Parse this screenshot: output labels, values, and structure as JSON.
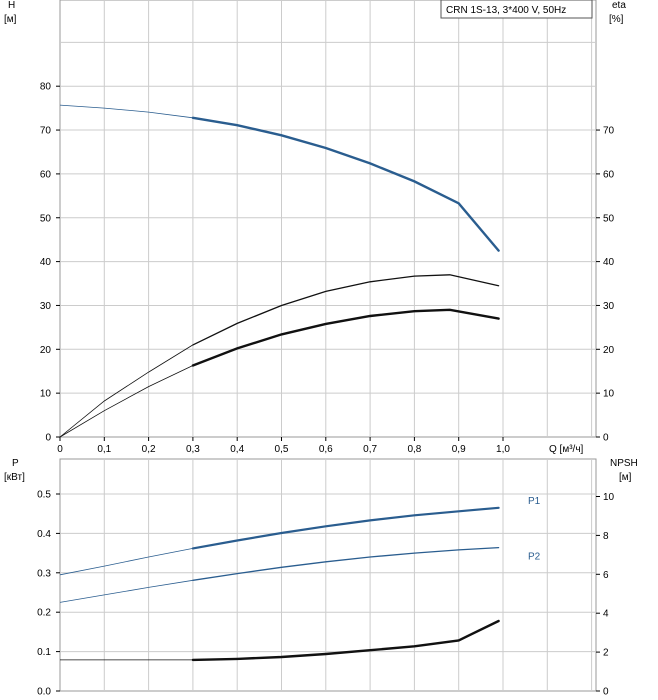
{
  "chart_data": [
    {
      "type": "line",
      "legend": "CRN 1S-13, 3*400 V, 50Hz",
      "left_axis_label": [
        "H",
        "[м]"
      ],
      "right_axis_label": [
        "eta",
        "[%]"
      ],
      "x_axis_label": "Q [м³/ч]",
      "x_ticks": [
        "0",
        "0,1",
        "0,2",
        "0,3",
        "0,4",
        "0,5",
        "0,6",
        "0,7",
        "0,8",
        "0,9",
        "1,0"
      ],
      "left_ticks": [
        "0",
        "10",
        "20",
        "30",
        "40",
        "50",
        "60",
        "70",
        "80"
      ],
      "right_ticks": [
        "0",
        "10",
        "20",
        "30",
        "40",
        "50",
        "60",
        "70"
      ],
      "xlim": [
        0,
        1.23
      ],
      "ylim": [
        0,
        100
      ],
      "colors": {
        "head": "#2a5d8f",
        "eta": "#111111",
        "grid": "#cccccc"
      },
      "series": [
        {
          "axis": "H",
          "x": [
            0,
            0.1,
            0.2,
            0.3,
            0.4,
            0.5,
            0.6,
            0.7,
            0.8,
            0.9,
            0.99
          ],
          "y": [
            75.7,
            75.0,
            74.1,
            72.8,
            71.1,
            68.8,
            65.9,
            62.4,
            58.3,
            53.3,
            42.5
          ]
        },
        {
          "axis": "eta",
          "x": [
            0,
            0.1,
            0.2,
            0.3,
            0.4,
            0.5,
            0.6,
            0.7,
            0.8,
            0.88,
            0.99
          ],
          "y": [
            0,
            8.2,
            14.8,
            21.0,
            25.9,
            30.0,
            33.2,
            35.4,
            36.7,
            37.0,
            34.5
          ]
        },
        {
          "axis": "eta",
          "x": [
            0,
            0.1,
            0.2,
            0.3,
            0.4,
            0.5,
            0.6,
            0.7,
            0.8,
            0.88,
            0.99
          ],
          "y": [
            0,
            6.0,
            11.5,
            16.3,
            20.2,
            23.4,
            25.8,
            27.6,
            28.7,
            29.0,
            27.0
          ]
        }
      ]
    },
    {
      "type": "line",
      "left_axis_label": [
        "P",
        "[кВт]"
      ],
      "right_axis_label": [
        "NPSH",
        "[м]"
      ],
      "left_ticks": [
        "0.0",
        "0.1",
        "0.2",
        "0.3",
        "0.4",
        "0.5"
      ],
      "right_ticks": [
        "0",
        "2",
        "4",
        "6",
        "8",
        "10"
      ],
      "xlim": [
        0,
        1.23
      ],
      "ylim": [
        0,
        0.55
      ],
      "colors": {
        "power": "#2a5d8f",
        "npsh": "#111111",
        "grid": "#cccccc"
      },
      "series": [
        {
          "name": "P1",
          "axis": "P",
          "x": [
            0,
            0.1,
            0.2,
            0.3,
            0.4,
            0.5,
            0.6,
            0.7,
            0.8,
            0.9,
            0.99
          ],
          "y": [
            0.295,
            0.317,
            0.34,
            0.362,
            0.382,
            0.401,
            0.418,
            0.433,
            0.446,
            0.456,
            0.465
          ]
        },
        {
          "name": "P2",
          "axis": "P",
          "x": [
            0,
            0.1,
            0.2,
            0.3,
            0.4,
            0.5,
            0.6,
            0.7,
            0.8,
            0.9,
            0.99
          ],
          "y": [
            0.225,
            0.244,
            0.263,
            0.281,
            0.298,
            0.314,
            0.328,
            0.34,
            0.35,
            0.358,
            0.364
          ]
        },
        {
          "axis": "NPSH",
          "x": [
            0,
            0.1,
            0.2,
            0.3,
            0.4,
            0.5,
            0.6,
            0.7,
            0.8,
            0.9,
            0.99
          ],
          "y": [
            1.6,
            1.6,
            1.6,
            1.6,
            1.65,
            1.75,
            1.9,
            2.1,
            2.3,
            2.6,
            3.6
          ]
        }
      ]
    }
  ]
}
